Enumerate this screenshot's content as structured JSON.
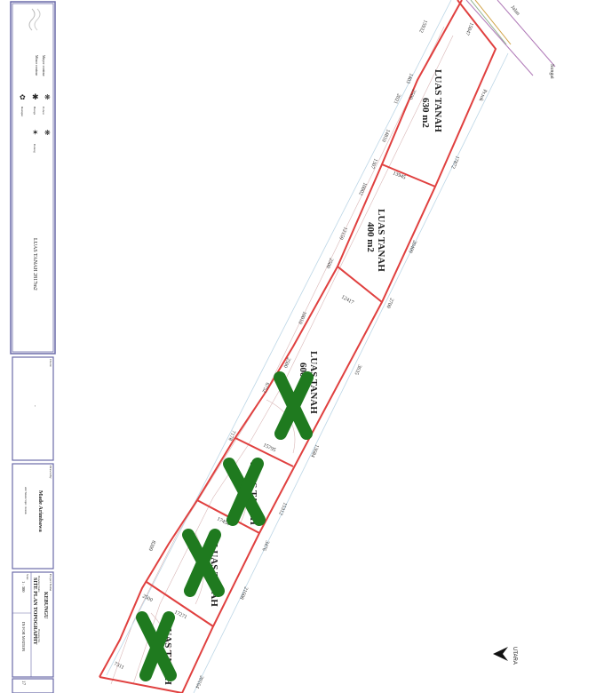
{
  "title_block": {
    "legend": [
      "Mayor contour",
      "Minor contour",
      "Pohon",
      "Bunga",
      "Rumput",
      "Ilalang"
    ],
    "total_area": "LUAS TANAH 2817m2",
    "client_label": "Client",
    "client_value": "-",
    "drawn_by_label": "Drawn By",
    "drawn_by": "Made Arimbawa",
    "drawn_by_note": "ahli Teknik Sipil / Arsitek",
    "project_label": "Project Name",
    "project": "KEBUNGU",
    "drawing_name_label": "Drawing Name",
    "drawing_no_label": "Drawing No.",
    "drawing_name": "SITE PLAN TOPOGRAPHY",
    "scale_label": "Scale",
    "scale": "1 : 300",
    "status": "IN FOR MATION",
    "sheet": "17"
  },
  "lots": [
    {
      "label": "LUAS TANAH",
      "area": "630 m2",
      "crossed": false
    },
    {
      "label": "LUAS TANAH",
      "area": "400 m2",
      "crossed": false
    },
    {
      "label": "LUAS TANAH",
      "area": "600 m2",
      "crossed": true
    },
    {
      "label": "LUAS TANAH",
      "area": "",
      "crossed": true
    },
    {
      "label": "LUAS TANAH",
      "area": "",
      "crossed": true
    },
    {
      "label": "LUAS TANAH",
      "area": "",
      "crossed": true
    }
  ],
  "dimensions": [
    "15932",
    "15047",
    "1403",
    "2500",
    "2021",
    "14810",
    "1307",
    "13945",
    "17872",
    "10002",
    "12159",
    "2500",
    "20409",
    "12417",
    "2700",
    "10010",
    "2500",
    "3635",
    "6752",
    "7178",
    "15795",
    "13684",
    "15312",
    "17454",
    "3476",
    "8209",
    "2500",
    "21608",
    "17271",
    "7311",
    "20164"
  ],
  "annotations": {
    "road": "Jalan",
    "river": "Sungai",
    "edge": "Pr.tok",
    "north": "UTARA"
  },
  "colors": {
    "boundary": "#e0403f",
    "cross": "#1f7a1f",
    "contour": "#c9a0a0",
    "frame": "#6a6aa8"
  }
}
